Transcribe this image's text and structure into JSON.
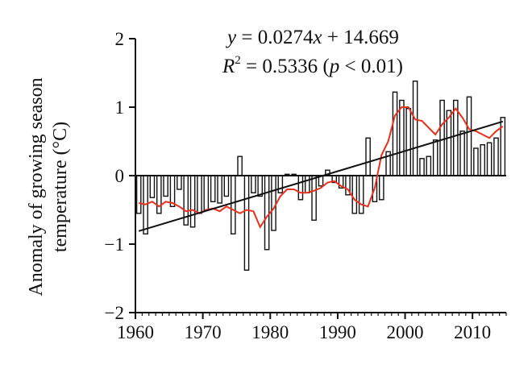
{
  "chart_data": {
    "type": "bar",
    "ylabel_lines": [
      "Anomaly of growing season",
      "temperature (°C)"
    ],
    "xlabel": "",
    "xlim": [
      1960,
      2015
    ],
    "ylim": [
      -2,
      2
    ],
    "x_ticks": [
      1960,
      1970,
      1980,
      1990,
      2000,
      2010
    ],
    "y_ticks": [
      -2,
      -1,
      0,
      1,
      2
    ],
    "grid": false,
    "annotations": {
      "eq_y": "y",
      "eq_rhs": " = 0.0274",
      "eq_x": "x",
      "eq_const": " + 14.669",
      "r_R": "R",
      "r_sup": "2",
      "r_val": " = 0.5336 (",
      "r_p": "p",
      "r_rest": " < 0.01)"
    },
    "series": [
      {
        "type": "bar",
        "x": [
          1960,
          1961,
          1962,
          1963,
          1964,
          1965,
          1966,
          1967,
          1968,
          1969,
          1970,
          1971,
          1972,
          1973,
          1974,
          1975,
          1976,
          1977,
          1978,
          1979,
          1980,
          1981,
          1982,
          1983,
          1984,
          1985,
          1986,
          1987,
          1988,
          1989,
          1990,
          1991,
          1992,
          1993,
          1994,
          1995,
          1996,
          1997,
          1998,
          1999,
          2000,
          2001,
          2002,
          2003,
          2004,
          2005,
          2006,
          2007,
          2008,
          2009,
          2010,
          2011,
          2012,
          2013,
          2014
        ],
        "values": [
          -0.55,
          -0.85,
          -0.32,
          -0.55,
          -0.3,
          -0.45,
          -0.2,
          -0.72,
          -0.75,
          -0.55,
          -0.5,
          -0.38,
          -0.4,
          -0.3,
          -0.85,
          0.28,
          -1.38,
          -0.25,
          -0.3,
          -1.08,
          -0.8,
          -0.25,
          0.02,
          0.02,
          -0.35,
          -0.25,
          -0.65,
          -0.15,
          0.08,
          -0.1,
          -0.18,
          -0.28,
          -0.55,
          -0.55,
          0.55,
          -0.38,
          -0.35,
          0.35,
          1.22,
          1.1,
          0.98,
          1.38,
          0.25,
          0.28,
          0.52,
          1.1,
          0.95,
          1.1,
          0.65,
          1.15,
          0.4,
          0.45,
          0.48,
          0.55,
          0.85
        ]
      },
      {
        "type": "line",
        "color": "#e8301c",
        "x": [
          1960,
          1961,
          1962,
          1963,
          1964,
          1965,
          1966,
          1967,
          1968,
          1969,
          1970,
          1971,
          1972,
          1973,
          1974,
          1975,
          1976,
          1977,
          1978,
          1979,
          1980,
          1981,
          1982,
          1983,
          1984,
          1985,
          1986,
          1987,
          1988,
          1989,
          1990,
          1991,
          1992,
          1993,
          1994,
          1995,
          1996,
          1997,
          1998,
          1999,
          2000,
          2001,
          2002,
          2003,
          2004,
          2005,
          2006,
          2007,
          2008,
          2009,
          2010,
          2011,
          2012,
          2013,
          2014
        ],
        "values": [
          -0.4,
          -0.42,
          -0.38,
          -0.45,
          -0.38,
          -0.4,
          -0.45,
          -0.52,
          -0.5,
          -0.55,
          -0.5,
          -0.48,
          -0.52,
          -0.45,
          -0.5,
          -0.55,
          -0.5,
          -0.52,
          -0.75,
          -0.6,
          -0.48,
          -0.3,
          -0.2,
          -0.2,
          -0.25,
          -0.25,
          -0.22,
          -0.18,
          -0.1,
          -0.08,
          -0.15,
          -0.2,
          -0.35,
          -0.42,
          -0.45,
          -0.18,
          0.3,
          0.5,
          0.88,
          1.0,
          1.0,
          0.82,
          0.8,
          0.7,
          0.6,
          0.75,
          0.85,
          0.98,
          0.85,
          0.68,
          0.65,
          0.6,
          0.55,
          0.65,
          0.72
        ]
      },
      {
        "type": "line",
        "color": "#111111",
        "x": [
          1960,
          2014
        ],
        "values": [
          -0.81,
          0.79
        ]
      }
    ]
  }
}
